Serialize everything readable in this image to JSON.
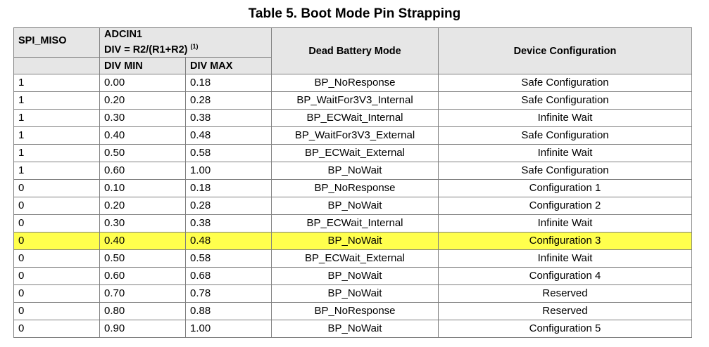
{
  "title": "Table 5. Boot Mode Pin Strapping",
  "header": {
    "spi_miso": "SPI_MISO",
    "adcin1_line1": "ADCIN1",
    "adcin1_line2": "DIV = R2/(R1+R2)",
    "adcin1_footnote": "(1)",
    "div_min": "DIV MIN",
    "div_max": "DIV MAX",
    "dead_battery_mode": "Dead Battery Mode",
    "device_configuration": "Device Configuration"
  },
  "highlight_color": "#ffff4d",
  "rows": [
    {
      "spi_miso": "1",
      "div_min": "0.00",
      "div_max": "0.18",
      "mode": "BP_NoResponse",
      "config": "Safe Configuration",
      "highlighted": false
    },
    {
      "spi_miso": "1",
      "div_min": "0.20",
      "div_max": "0.28",
      "mode": "BP_WaitFor3V3_Internal",
      "config": "Safe Configuration",
      "highlighted": false
    },
    {
      "spi_miso": "1",
      "div_min": "0.30",
      "div_max": "0.38",
      "mode": "BP_ECWait_Internal",
      "config": "Infinite Wait",
      "highlighted": false
    },
    {
      "spi_miso": "1",
      "div_min": "0.40",
      "div_max": "0.48",
      "mode": "BP_WaitFor3V3_External",
      "config": "Safe Configuration",
      "highlighted": false
    },
    {
      "spi_miso": "1",
      "div_min": "0.50",
      "div_max": "0.58",
      "mode": "BP_ECWait_External",
      "config": "Infinite Wait",
      "highlighted": false
    },
    {
      "spi_miso": "1",
      "div_min": "0.60",
      "div_max": "1.00",
      "mode": "BP_NoWait",
      "config": "Safe Configuration",
      "highlighted": false
    },
    {
      "spi_miso": "0",
      "div_min": "0.10",
      "div_max": "0.18",
      "mode": "BP_NoResponse",
      "config": "Configuration 1",
      "highlighted": false
    },
    {
      "spi_miso": "0",
      "div_min": "0.20",
      "div_max": "0.28",
      "mode": "BP_NoWait",
      "config": "Configuration 2",
      "highlighted": false
    },
    {
      "spi_miso": "0",
      "div_min": "0.30",
      "div_max": "0.38",
      "mode": "BP_ECWait_Internal",
      "config": "Infinite Wait",
      "highlighted": false
    },
    {
      "spi_miso": "0",
      "div_min": "0.40",
      "div_max": "0.48",
      "mode": "BP_NoWait",
      "config": "Configuration 3",
      "highlighted": true
    },
    {
      "spi_miso": "0",
      "div_min": "0.50",
      "div_max": "0.58",
      "mode": "BP_ECWait_External",
      "config": "Infinite Wait",
      "highlighted": false
    },
    {
      "spi_miso": "0",
      "div_min": "0.60",
      "div_max": "0.68",
      "mode": "BP_NoWait",
      "config": "Configuration 4",
      "highlighted": false
    },
    {
      "spi_miso": "0",
      "div_min": "0.70",
      "div_max": "0.78",
      "mode": "BP_NoWait",
      "config": "Reserved",
      "highlighted": false
    },
    {
      "spi_miso": "0",
      "div_min": "0.80",
      "div_max": "0.88",
      "mode": "BP_NoResponse",
      "config": "Reserved",
      "highlighted": false
    },
    {
      "spi_miso": "0",
      "div_min": "0.90",
      "div_max": "1.00",
      "mode": "BP_NoWait",
      "config": "Configuration 5",
      "highlighted": false
    }
  ]
}
